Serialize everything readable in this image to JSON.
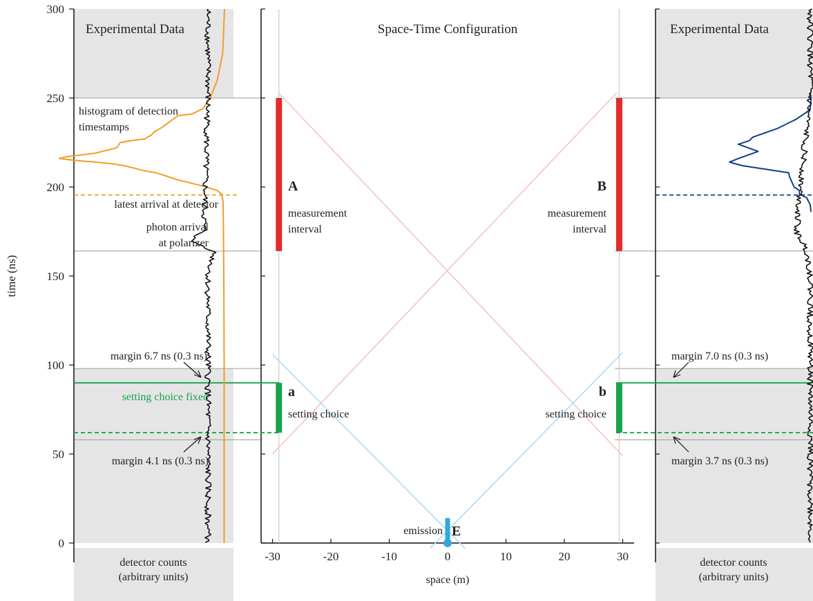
{
  "chart_data": [
    {
      "type": "line",
      "panel": "left-data",
      "title": "Experimental Data",
      "ylabel": "time (ns)",
      "xlabel": "detector counts (arbitrary units)",
      "xlabel_lines": [
        "detector counts",
        "(arbitrary units)"
      ],
      "ylim": [
        0,
        300
      ],
      "yticks": [
        0,
        50,
        100,
        150,
        200,
        250,
        300
      ],
      "shaded_ranges": [
        [
          0,
          98
        ],
        [
          250,
          300
        ]
      ],
      "series": [
        {
          "color": "#f39c26",
          "points": [
            [
              0,
              300
            ],
            [
              2,
              290
            ],
            [
              5,
              275
            ],
            [
              20,
              260
            ],
            [
              40,
              250
            ],
            [
              60,
              244
            ],
            [
              90,
              241
            ],
            [
              130,
              240
            ],
            [
              150,
              237
            ],
            [
              170,
              234
            ],
            [
              195,
              231
            ],
            [
              205,
              229
            ],
            [
              215,
              228
            ],
            [
              220,
              227
            ],
            [
              260,
              226
            ],
            [
              290,
              225
            ],
            [
              300,
              222
            ],
            [
              320,
              221
            ],
            [
              340,
              220
            ],
            [
              360,
              219
            ],
            [
              400,
              218
            ],
            [
              440,
              217
            ],
            [
              460,
              216
            ],
            [
              420,
              215
            ],
            [
              360,
              214
            ],
            [
              310,
              213
            ],
            [
              280,
              212
            ],
            [
              260,
              211
            ],
            [
              240,
              210
            ],
            [
              220,
              209
            ],
            [
              190,
              208
            ],
            [
              160,
              206
            ],
            [
              130,
              204
            ],
            [
              90,
              202
            ],
            [
              50,
              200
            ],
            [
              20,
              198
            ],
            [
              8,
              196
            ],
            [
              4,
              192
            ],
            [
              3,
              180
            ],
            [
              2,
              150
            ],
            [
              1,
              100
            ],
            [
              1,
              0
            ]
          ]
        },
        {
          "color": "#111111",
          "style": "noise",
          "points": [
            [
              24,
              300
            ],
            [
              24,
              250
            ],
            [
              30,
              175
            ],
            [
              50,
              170
            ],
            [
              15,
              164
            ],
            [
              24,
              150
            ],
            [
              24,
              0
            ]
          ]
        }
      ],
      "hlines": [
        {
          "y": 195.5,
          "color": "#f39c26",
          "dashed": true
        },
        {
          "y": 90,
          "color": "#17a44a",
          "dashed": false
        },
        {
          "y": 62,
          "color": "#17a44a",
          "dashed": true
        }
      ],
      "annotations": [
        {
          "text": "histogram of detection",
          "y": 244
        },
        {
          "text": "timestamps",
          "y": 234
        },
        {
          "text": "latest arrival at detector",
          "y": 190
        },
        {
          "text": "photon arrival",
          "y": 176
        },
        {
          "text": "at polarizer",
          "y": 166
        },
        {
          "text": "margin 6.7 ns (0.3 ns)",
          "y": 105
        },
        {
          "text": "setting choice fixed",
          "y": 83
        },
        {
          "text": "margin 4.1 ns (0.3 ns)",
          "y": 51
        }
      ]
    },
    {
      "type": "line",
      "panel": "center-spacetime",
      "title": "Space-Time Configuration",
      "xlabel": "space (m)",
      "xlim": [
        -32,
        32
      ],
      "ylim": [
        0,
        300
      ],
      "xticks": [
        -30,
        -20,
        -10,
        0,
        10,
        20,
        30
      ],
      "series": [
        {
          "color": "#f7c3c3",
          "points": [
            [
              -30,
              50
            ],
            [
              29,
              253
            ]
          ]
        },
        {
          "color": "#f7c3c3",
          "points": [
            [
              30,
              49
            ],
            [
              -29,
              253
            ]
          ]
        },
        {
          "color": "#acdcf2",
          "points": [
            [
              -30,
              106
            ],
            [
              3,
              -3
            ]
          ]
        },
        {
          "color": "#acdcf2",
          "points": [
            [
              30,
              107
            ],
            [
              -3,
              -3
            ]
          ]
        }
      ],
      "vlines": [
        {
          "x": -28.9,
          "color": "#cccccc"
        },
        {
          "x": 29.4,
          "color": "#cccccc"
        }
      ],
      "intervals": [
        {
          "x": -28.9,
          "y0": 164,
          "y1": 250,
          "color": "#e32b2b",
          "label": "A",
          "caption_lines": [
            "measurement",
            "interval"
          ]
        },
        {
          "x": 29.4,
          "y0": 164,
          "y1": 250,
          "color": "#e32b2b",
          "label": "B",
          "caption_lines": [
            "measurement",
            "interval"
          ]
        },
        {
          "x": -28.9,
          "y0": 62,
          "y1": 90,
          "color": "#17a44a",
          "label": "a",
          "caption_lines": [
            "setting choice"
          ]
        },
        {
          "x": 29.4,
          "y0": 62,
          "y1": 90,
          "color": "#17a44a",
          "label": "b",
          "caption_lines": [
            "setting choice"
          ]
        },
        {
          "x": 0,
          "y0": 0,
          "y1": 14,
          "color": "#2ea8df",
          "label": "E",
          "caption_lines": [
            "emission"
          ]
        }
      ]
    },
    {
      "type": "line",
      "panel": "right-data",
      "title": "Experimental Data",
      "xlabel": "detector counts (arbitrary units)",
      "xlabel_lines": [
        "detector counts",
        "(arbitrary units)"
      ],
      "ylim": [
        0,
        300
      ],
      "shaded_ranges": [
        [
          0,
          98
        ],
        [
          250,
          300
        ]
      ],
      "series": [
        {
          "color": "#103e8c",
          "points": [
            [
              0,
              253
            ],
            [
              2,
              250
            ],
            [
              2,
              248
            ],
            [
              0,
              244
            ],
            [
              -10,
              242
            ],
            [
              -40,
              238
            ],
            [
              -90,
              233
            ],
            [
              -160,
              228
            ],
            [
              -170,
              226
            ],
            [
              -200,
              224
            ],
            [
              -145,
              220
            ],
            [
              -200,
              216
            ],
            [
              -225,
              214
            ],
            [
              -190,
              212
            ],
            [
              -60,
              208
            ],
            [
              -58,
              206
            ],
            [
              -45,
              200
            ],
            [
              -30,
              198
            ],
            [
              -30,
              196
            ],
            [
              -10,
              194
            ],
            [
              0,
              190
            ],
            [
              2,
              186
            ]
          ]
        },
        {
          "color": "#111111",
          "style": "noise",
          "points": [
            [
              0,
              300
            ],
            [
              0,
              255
            ],
            [
              -20,
              175
            ],
            [
              -5,
              164
            ],
            [
              0,
              150
            ],
            [
              0,
              0
            ]
          ]
        }
      ],
      "hlines": [
        {
          "y": 195.5,
          "color": "#103e8c",
          "dashed": true
        },
        {
          "y": 90,
          "color": "#17a44a",
          "dashed": false
        },
        {
          "y": 62,
          "color": "#17a44a",
          "dashed": true
        }
      ],
      "annotations": [
        {
          "text": "margin 7.0 ns (0.3 ns)",
          "y": 105
        },
        {
          "text": "margin 3.7 ns (0.3 ns)",
          "y": 51
        }
      ]
    }
  ]
}
